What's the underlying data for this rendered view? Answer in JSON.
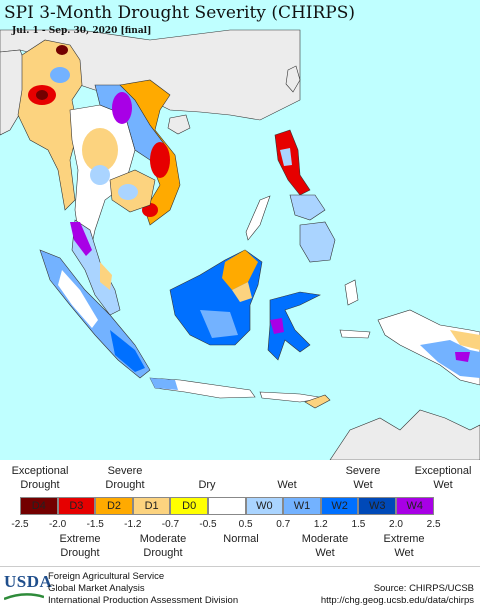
{
  "map": {
    "title": "SPI 3-Month Drought Severity (CHIRPS)",
    "subtitle": "Jul. 1 - Sep. 30, 2020 [final]",
    "colors": {
      "ocean": "#bfffff",
      "land_outside": "#ececec",
      "normal": "#ffffff"
    }
  },
  "legend": {
    "top_labels": [
      {
        "text": "Exceptional\nDrought"
      },
      {
        "text": "Severe\nDrought"
      },
      {
        "text": "Dry"
      },
      {
        "text": "Wet"
      },
      {
        "text": "Severe\nWet"
      },
      {
        "text": "Exceptional\nWet"
      }
    ],
    "classes": [
      {
        "label": "D4",
        "color": "#730000"
      },
      {
        "label": "D3",
        "color": "#e60000"
      },
      {
        "label": "D2",
        "color": "#ffaa00"
      },
      {
        "label": "D1",
        "color": "#fcd37f"
      },
      {
        "label": "D0",
        "color": "#ffff00"
      },
      {
        "label": "",
        "color": "#ffffff"
      },
      {
        "label": "W0",
        "color": "#aad4ff"
      },
      {
        "label": "W1",
        "color": "#73b2ff"
      },
      {
        "label": "W2",
        "color": "#0070ff"
      },
      {
        "label": "W3",
        "color": "#0049b8"
      },
      {
        "label": "W4",
        "color": "#a800e6"
      }
    ],
    "ticks": [
      "-2.5",
      "-2.0",
      "-1.5",
      "-1.2",
      "-0.7",
      "-0.5",
      "0.5",
      "0.7",
      "1.2",
      "1.5",
      "2.0",
      "2.5"
    ],
    "bottom_labels": [
      {
        "text": "Extreme\nDrought"
      },
      {
        "text": "Moderate\nDrought"
      },
      {
        "text": "Normal"
      },
      {
        "text": "Moderate\nWet"
      },
      {
        "text": "Extreme\nWet"
      }
    ]
  },
  "footer": {
    "logo": "USDA",
    "agency_line1": "Foreign Agricultural Service",
    "agency_line2": "Global Market Analysis",
    "agency_line3": "International Production Assessment Division",
    "source": "Source: CHIRPS/UCSB",
    "url": "http://chg.geog.ucsb.edu/data/chirps"
  }
}
